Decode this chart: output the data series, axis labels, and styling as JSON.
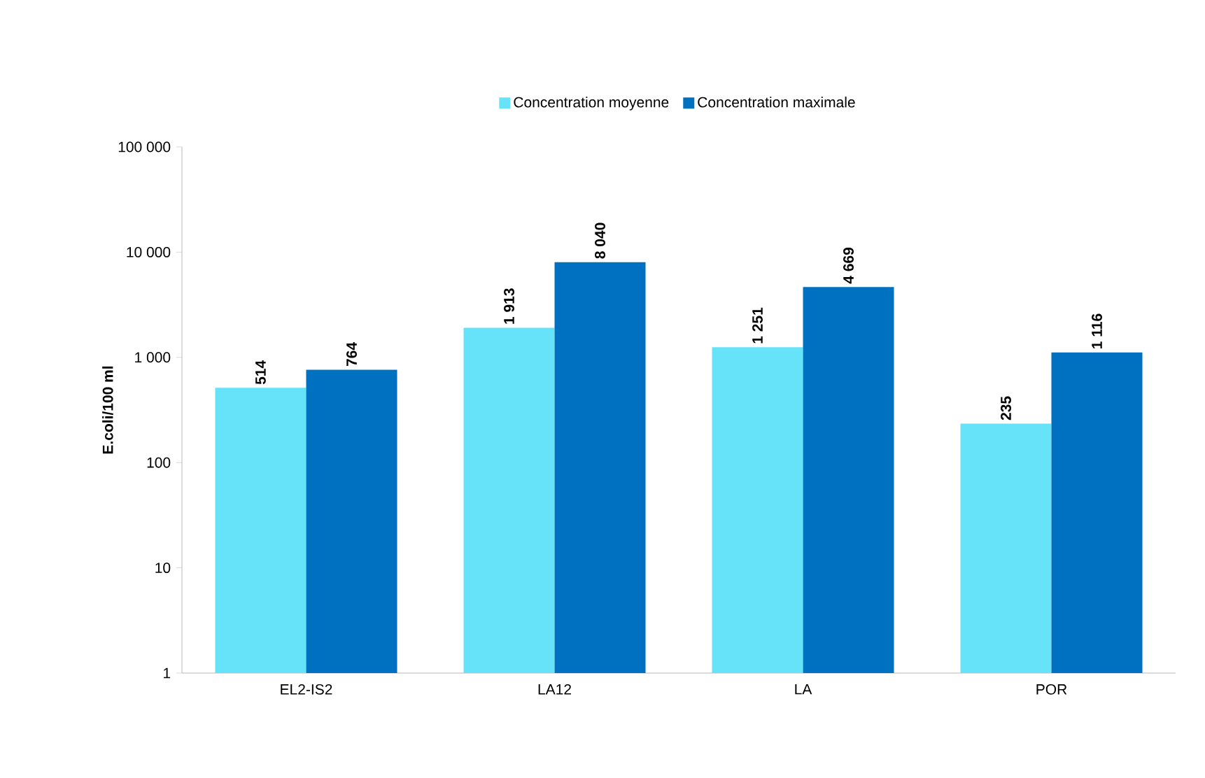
{
  "chart_data": {
    "type": "bar",
    "ylabel": "E.coli/100 ml",
    "categories": [
      "EL2-IS2",
      "LA12",
      "LA",
      "POR"
    ],
    "series": [
      {
        "name": "Concentration moyenne",
        "color": "#66e3f9",
        "values": [
          514,
          1913,
          1251,
          235
        ],
        "value_labels": [
          "514",
          "1 913",
          "1 251",
          "235"
        ]
      },
      {
        "name": "Concentration maximale",
        "color": "#0070c0",
        "values": [
          764,
          8040,
          4669,
          1116
        ],
        "value_labels": [
          "764",
          "8 040",
          "4 669",
          "1 116"
        ]
      }
    ],
    "log": true,
    "ylim": [
      1,
      100000
    ],
    "yticks": [
      {
        "value": 1,
        "label": "1"
      },
      {
        "value": 10,
        "label": "10"
      },
      {
        "value": 100,
        "label": "100"
      },
      {
        "value": 1000,
        "label": "1 000"
      },
      {
        "value": 10000,
        "label": "10 000"
      },
      {
        "value": 100000,
        "label": "100 000"
      }
    ],
    "grid": false,
    "legend": "top"
  }
}
